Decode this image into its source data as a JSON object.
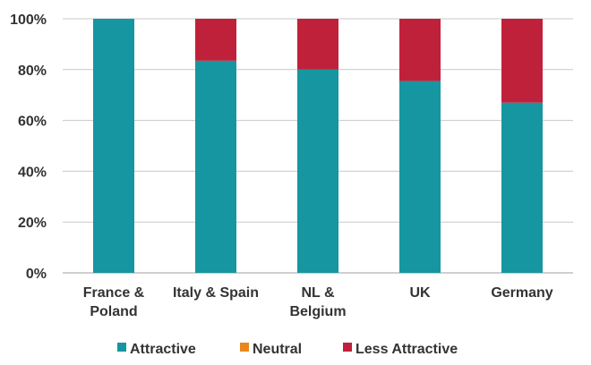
{
  "chart_data": {
    "type": "bar",
    "stacked": true,
    "categories": [
      [
        "France &",
        "Poland"
      ],
      [
        "Italy & Spain"
      ],
      [
        "NL &",
        "Belgium"
      ],
      [
        "UK"
      ],
      [
        "Germany"
      ]
    ],
    "series": [
      {
        "name": "Attractive",
        "color": "#1696A0",
        "values": [
          100,
          83.5,
          80,
          75.5,
          67
        ]
      },
      {
        "name": "Neutral",
        "color": "#E8871E",
        "values": [
          0,
          0,
          0,
          0,
          0
        ]
      },
      {
        "name": "Less Attractive",
        "color": "#C0213A",
        "values": [
          0,
          16.5,
          20,
          24.5,
          33
        ]
      }
    ],
    "y_ticks": [
      {
        "value": 0,
        "label": "0%"
      },
      {
        "value": 20,
        "label": "20%"
      },
      {
        "value": 40,
        "label": "40%"
      },
      {
        "value": 60,
        "label": "60%"
      },
      {
        "value": 80,
        "label": "80%"
      },
      {
        "value": 100,
        "label": "100%"
      }
    ],
    "ylim": [
      0,
      100
    ],
    "grid": true,
    "legend_position": "bottom"
  }
}
